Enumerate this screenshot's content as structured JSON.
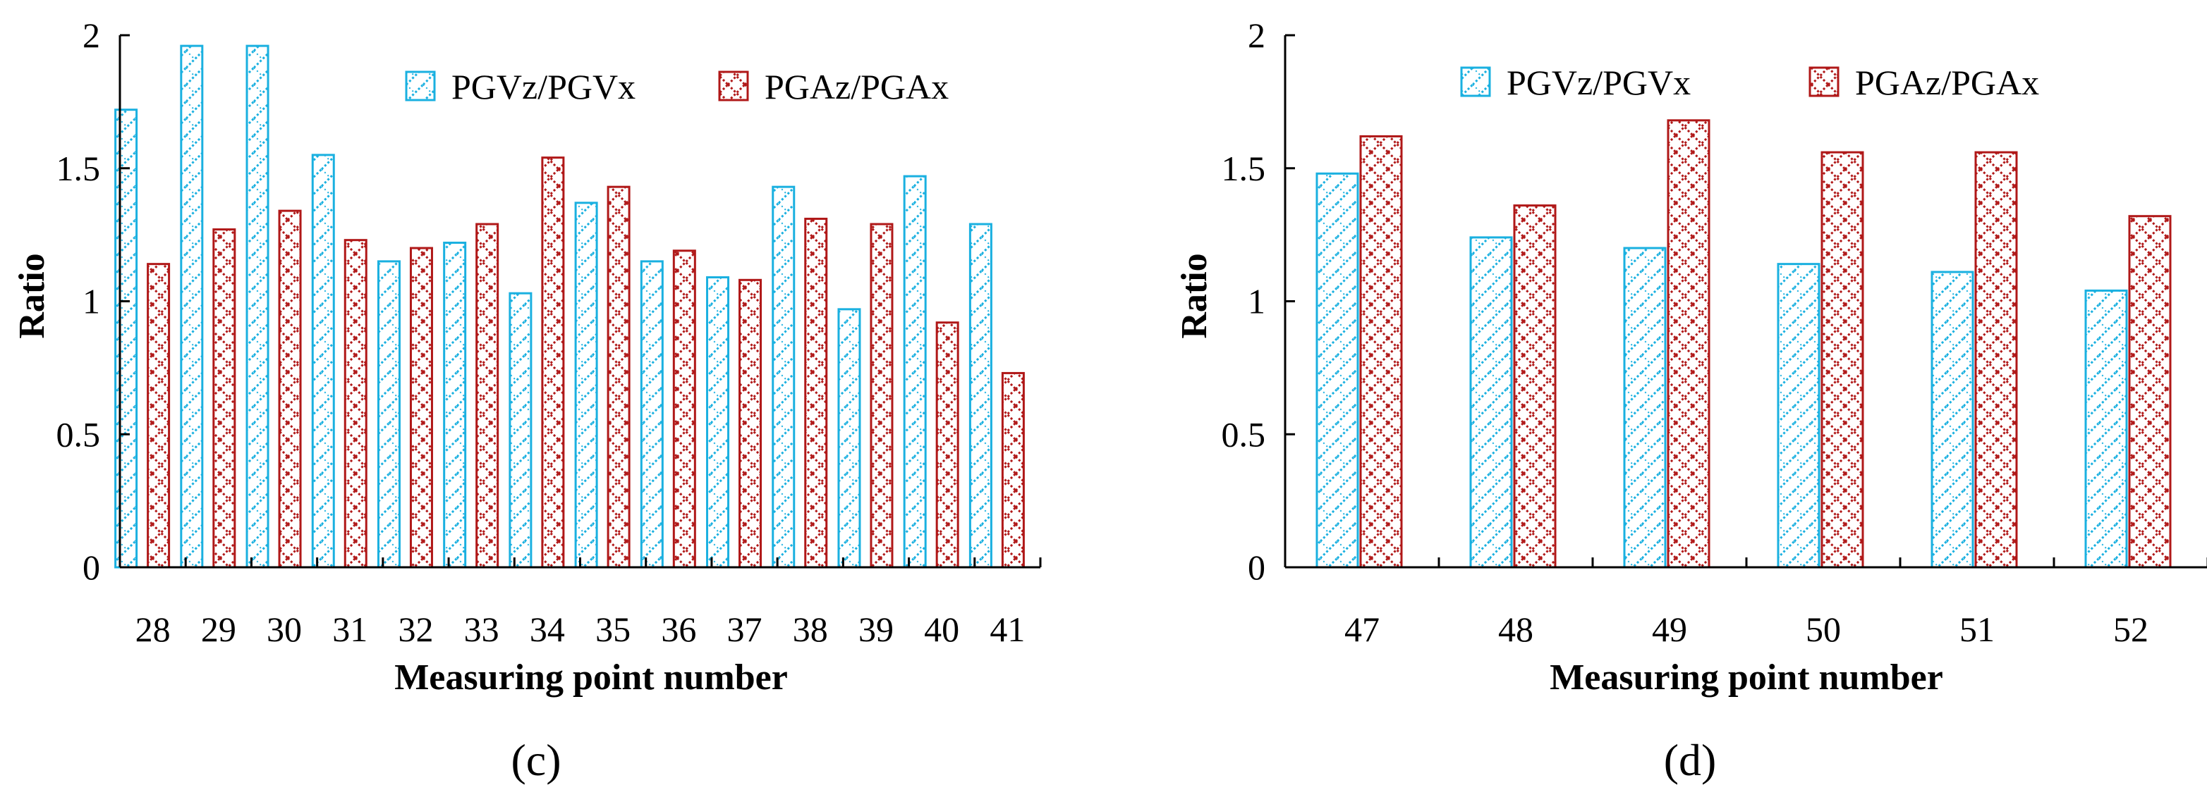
{
  "colors": {
    "pgv": "#1ab0e0",
    "pga": "#b01818"
  },
  "chart_data": [
    {
      "type": "bar",
      "panel_label": "(c)",
      "categories": [
        "28",
        "29",
        "30",
        "31",
        "32",
        "33",
        "34",
        "35",
        "36",
        "37",
        "38",
        "39",
        "40",
        "41"
      ],
      "series": [
        {
          "name": "PGVz/PGVx",
          "values": [
            1.72,
            1.96,
            1.96,
            1.55,
            1.15,
            1.22,
            1.03,
            1.37,
            1.15,
            1.09,
            1.43,
            0.97,
            1.47,
            1.29
          ]
        },
        {
          "name": "PGAz/PGAx",
          "values": [
            1.14,
            1.27,
            1.34,
            1.23,
            1.2,
            1.29,
            1.54,
            1.43,
            1.19,
            1.08,
            1.31,
            1.29,
            0.92,
            0.73
          ]
        }
      ],
      "xlabel": "Measuring point number",
      "ylabel": "Ratio",
      "ylim": [
        0,
        2
      ],
      "yticks": [
        "0",
        "0.5",
        "1",
        "1.5",
        "2"
      ],
      "grid": false,
      "legend": "top-right"
    },
    {
      "type": "bar",
      "panel_label": "(d)",
      "categories": [
        "47",
        "48",
        "49",
        "50",
        "51",
        "52"
      ],
      "series": [
        {
          "name": "PGVz/PGVx",
          "values": [
            1.48,
            1.24,
            1.2,
            1.14,
            1.11,
            1.04
          ]
        },
        {
          "name": "PGAz/PGAx",
          "values": [
            1.62,
            1.36,
            1.68,
            1.56,
            1.56,
            1.32
          ]
        }
      ],
      "xlabel": "Measuring point number",
      "ylabel": "Ratio",
      "ylim": [
        0,
        2
      ],
      "yticks": [
        "0",
        "0.5",
        "1",
        "1.5",
        "2"
      ],
      "grid": false,
      "legend": "top"
    }
  ]
}
